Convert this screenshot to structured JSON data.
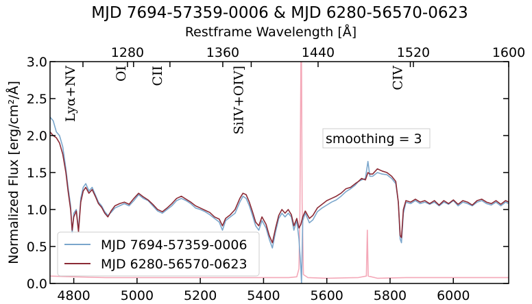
{
  "chart_data": {
    "type": "line",
    "title": "MJD 7694-57359-0006 & MJD 6280-56570-0623",
    "xlabel": "",
    "ylabel": "Normalized Flux [erg/cm²/Å]",
    "top_xlabel": "Restframe Wavelength [Å]",
    "xlim": [
      4725,
      6175
    ],
    "ylim": [
      0,
      3.0
    ],
    "top_xlim": [
      1215,
      1600
    ],
    "x_ticks": [
      4800,
      5000,
      5200,
      5400,
      5600,
      5800,
      6000
    ],
    "y_ticks": [
      0.0,
      0.5,
      1.0,
      1.5,
      2.0,
      2.5,
      3.0
    ],
    "top_ticks": [
      1280,
      1360,
      1440,
      1520,
      1600
    ],
    "annotation": "smoothing = 3",
    "line_labels": [
      {
        "label": "Lyα+NV",
        "x": 4790
      },
      {
        "label": "OI",
        "x": 4950
      },
      {
        "label": "CII",
        "x": 5065
      },
      {
        "label": "SiIV+OIV]",
        "x": 5322
      },
      {
        "label": "CIV",
        "x": 5825
      }
    ],
    "legend_position": "lower-left",
    "series": [
      {
        "name": "MJD 7694-57359-0006",
        "color": "#7aa6cc",
        "points": [
          [
            4725,
            2.25
          ],
          [
            4735,
            2.2
          ],
          [
            4745,
            2.05
          ],
          [
            4755,
            2.0
          ],
          [
            4765,
            1.85
          ],
          [
            4775,
            1.55
          ],
          [
            4782,
            1.3
          ],
          [
            4790,
            1.05
          ],
          [
            4795,
            0.68
          ],
          [
            4800,
            0.95
          ],
          [
            4808,
            1.0
          ],
          [
            4815,
            0.72
          ],
          [
            4822,
            1.15
          ],
          [
            4830,
            1.3
          ],
          [
            4838,
            1.35
          ],
          [
            4848,
            1.25
          ],
          [
            4858,
            1.3
          ],
          [
            4868,
            1.2
          ],
          [
            4878,
            1.1
          ],
          [
            4888,
            1.05
          ],
          [
            4898,
            0.97
          ],
          [
            4908,
            0.92
          ],
          [
            4918,
            0.96
          ],
          [
            4930,
            1.02
          ],
          [
            4945,
            1.05
          ],
          [
            4960,
            1.08
          ],
          [
            4975,
            1.05
          ],
          [
            4990,
            1.12
          ],
          [
            5005,
            1.2
          ],
          [
            5020,
            1.15
          ],
          [
            5035,
            1.12
          ],
          [
            5050,
            1.05
          ],
          [
            5065,
            0.98
          ],
          [
            5080,
            0.95
          ],
          [
            5095,
            1.0
          ],
          [
            5110,
            1.05
          ],
          [
            5125,
            1.12
          ],
          [
            5140,
            1.15
          ],
          [
            5155,
            1.12
          ],
          [
            5170,
            1.08
          ],
          [
            5185,
            1.02
          ],
          [
            5200,
            1.0
          ],
          [
            5215,
            0.97
          ],
          [
            5230,
            0.93
          ],
          [
            5245,
            0.88
          ],
          [
            5260,
            0.83
          ],
          [
            5270,
            0.72
          ],
          [
            5280,
            0.85
          ],
          [
            5295,
            0.9
          ],
          [
            5310,
            0.95
          ],
          [
            5325,
            1.1
          ],
          [
            5335,
            1.18
          ],
          [
            5345,
            1.15
          ],
          [
            5355,
            1.05
          ],
          [
            5365,
            0.92
          ],
          [
            5375,
            0.78
          ],
          [
            5385,
            0.72
          ],
          [
            5395,
            0.85
          ],
          [
            5408,
            0.75
          ],
          [
            5418,
            0.6
          ],
          [
            5428,
            0.48
          ],
          [
            5438,
            0.7
          ],
          [
            5448,
            0.88
          ],
          [
            5458,
            0.95
          ],
          [
            5468,
            0.9
          ],
          [
            5478,
            0.95
          ],
          [
            5488,
            0.9
          ],
          [
            5496,
            0.72
          ],
          [
            5505,
            0.85
          ],
          [
            5512,
            0.6
          ],
          [
            5518,
            0.2
          ],
          [
            5520,
            0.0
          ],
          [
            5524,
            0.85
          ],
          [
            5532,
            0.95
          ],
          [
            5545,
            0.82
          ],
          [
            5556,
            0.86
          ],
          [
            5570,
            0.97
          ],
          [
            5585,
            1.02
          ],
          [
            5600,
            1.06
          ],
          [
            5615,
            1.1
          ],
          [
            5630,
            1.13
          ],
          [
            5645,
            1.18
          ],
          [
            5660,
            1.24
          ],
          [
            5675,
            1.28
          ],
          [
            5690,
            1.33
          ],
          [
            5700,
            1.38
          ],
          [
            5710,
            1.4
          ],
          [
            5722,
            1.42
          ],
          [
            5730,
            1.65
          ],
          [
            5736,
            1.45
          ],
          [
            5745,
            1.45
          ],
          [
            5760,
            1.5
          ],
          [
            5775,
            1.48
          ],
          [
            5790,
            1.47
          ],
          [
            5805,
            1.42
          ],
          [
            5818,
            1.35
          ],
          [
            5826,
            1.1
          ],
          [
            5832,
            0.6
          ],
          [
            5836,
            0.55
          ],
          [
            5842,
            0.95
          ],
          [
            5850,
            1.1
          ],
          [
            5865,
            1.08
          ],
          [
            5880,
            1.12
          ],
          [
            5895,
            1.08
          ],
          [
            5910,
            1.1
          ],
          [
            5925,
            1.07
          ],
          [
            5940,
            1.1
          ],
          [
            5955,
            1.05
          ],
          [
            5970,
            1.1
          ],
          [
            5985,
            1.07
          ],
          [
            6000,
            1.12
          ],
          [
            6015,
            1.05
          ],
          [
            6030,
            1.1
          ],
          [
            6045,
            1.08
          ],
          [
            6060,
            1.05
          ],
          [
            6075,
            1.1
          ],
          [
            6090,
            1.12
          ],
          [
            6105,
            1.08
          ],
          [
            6120,
            1.06
          ],
          [
            6135,
            1.1
          ],
          [
            6150,
            1.05
          ],
          [
            6165,
            1.1
          ],
          [
            6175,
            1.08
          ]
        ]
      },
      {
        "name": "MJD 6280-56570-0623",
        "color": "#8b2a35",
        "points": [
          [
            4725,
            2.05
          ],
          [
            4735,
            2.0
          ],
          [
            4745,
            1.97
          ],
          [
            4755,
            1.9
          ],
          [
            4765,
            1.75
          ],
          [
            4775,
            1.5
          ],
          [
            4782,
            1.25
          ],
          [
            4790,
            1.0
          ],
          [
            4795,
            0.72
          ],
          [
            4800,
            0.9
          ],
          [
            4808,
            0.98
          ],
          [
            4815,
            0.7
          ],
          [
            4822,
            1.1
          ],
          [
            4830,
            1.25
          ],
          [
            4838,
            1.3
          ],
          [
            4848,
            1.22
          ],
          [
            4858,
            1.27
          ],
          [
            4868,
            1.18
          ],
          [
            4878,
            1.08
          ],
          [
            4888,
            1.03
          ],
          [
            4898,
            0.95
          ],
          [
            4908,
            0.9
          ],
          [
            4918,
            0.98
          ],
          [
            4930,
            1.05
          ],
          [
            4945,
            1.08
          ],
          [
            4960,
            1.1
          ],
          [
            4975,
            1.07
          ],
          [
            4990,
            1.15
          ],
          [
            5005,
            1.22
          ],
          [
            5020,
            1.17
          ],
          [
            5035,
            1.13
          ],
          [
            5050,
            1.07
          ],
          [
            5065,
            1.0
          ],
          [
            5080,
            0.97
          ],
          [
            5095,
            1.02
          ],
          [
            5110,
            1.08
          ],
          [
            5125,
            1.15
          ],
          [
            5140,
            1.18
          ],
          [
            5155,
            1.14
          ],
          [
            5170,
            1.1
          ],
          [
            5185,
            1.05
          ],
          [
            5200,
            1.02
          ],
          [
            5215,
            0.99
          ],
          [
            5230,
            0.96
          ],
          [
            5245,
            0.9
          ],
          [
            5260,
            0.87
          ],
          [
            5270,
            0.78
          ],
          [
            5280,
            0.88
          ],
          [
            5295,
            0.93
          ],
          [
            5310,
            1.0
          ],
          [
            5325,
            1.15
          ],
          [
            5335,
            1.22
          ],
          [
            5345,
            1.2
          ],
          [
            5355,
            1.1
          ],
          [
            5365,
            0.97
          ],
          [
            5375,
            0.83
          ],
          [
            5385,
            0.78
          ],
          [
            5395,
            0.9
          ],
          [
            5408,
            0.8
          ],
          [
            5418,
            0.65
          ],
          [
            5428,
            0.55
          ],
          [
            5438,
            0.75
          ],
          [
            5448,
            0.92
          ],
          [
            5458,
            1.0
          ],
          [
            5468,
            0.95
          ],
          [
            5478,
            1.0
          ],
          [
            5488,
            0.93
          ],
          [
            5496,
            0.78
          ],
          [
            5505,
            0.88
          ],
          [
            5512,
            0.75
          ],
          [
            5518,
            0.8
          ],
          [
            5524,
            0.9
          ],
          [
            5532,
            0.98
          ],
          [
            5545,
            0.88
          ],
          [
            5556,
            0.92
          ],
          [
            5570,
            1.02
          ],
          [
            5585,
            1.07
          ],
          [
            5600,
            1.12
          ],
          [
            5615,
            1.15
          ],
          [
            5630,
            1.18
          ],
          [
            5645,
            1.22
          ],
          [
            5660,
            1.28
          ],
          [
            5675,
            1.3
          ],
          [
            5690,
            1.35
          ],
          [
            5700,
            1.38
          ],
          [
            5710,
            1.42
          ],
          [
            5722,
            1.4
          ],
          [
            5730,
            1.5
          ],
          [
            5736,
            1.48
          ],
          [
            5745,
            1.48
          ],
          [
            5760,
            1.55
          ],
          [
            5775,
            1.52
          ],
          [
            5790,
            1.5
          ],
          [
            5805,
            1.45
          ],
          [
            5818,
            1.38
          ],
          [
            5826,
            1.1
          ],
          [
            5832,
            0.65
          ],
          [
            5836,
            0.62
          ],
          [
            5842,
            1.0
          ],
          [
            5850,
            1.12
          ],
          [
            5865,
            1.1
          ],
          [
            5880,
            1.14
          ],
          [
            5895,
            1.1
          ],
          [
            5910,
            1.12
          ],
          [
            5925,
            1.08
          ],
          [
            5940,
            1.12
          ],
          [
            5955,
            1.06
          ],
          [
            5970,
            1.12
          ],
          [
            5985,
            1.08
          ],
          [
            6000,
            1.13
          ],
          [
            6015,
            1.07
          ],
          [
            6030,
            1.12
          ],
          [
            6045,
            1.1
          ],
          [
            6060,
            1.06
          ],
          [
            6075,
            1.12
          ],
          [
            6090,
            1.14
          ],
          [
            6105,
            1.1
          ],
          [
            6120,
            1.08
          ],
          [
            6135,
            1.12
          ],
          [
            6150,
            1.07
          ],
          [
            6165,
            1.12
          ],
          [
            6175,
            1.1
          ]
        ]
      },
      {
        "name": "",
        "color": "#f4a8b8",
        "points": [
          [
            4725,
            0.1
          ],
          [
            4800,
            0.09
          ],
          [
            4900,
            0.08
          ],
          [
            5000,
            0.08
          ],
          [
            5100,
            0.08
          ],
          [
            5200,
            0.08
          ],
          [
            5300,
            0.08
          ],
          [
            5400,
            0.08
          ],
          [
            5480,
            0.08
          ],
          [
            5505,
            0.09
          ],
          [
            5512,
            0.2
          ],
          [
            5515,
            1.0
          ],
          [
            5518,
            3.0
          ],
          [
            5520,
            3.0
          ],
          [
            5522,
            1.1
          ],
          [
            5526,
            0.12
          ],
          [
            5540,
            0.08
          ],
          [
            5600,
            0.07
          ],
          [
            5700,
            0.08
          ],
          [
            5725,
            0.1
          ],
          [
            5728,
            0.72
          ],
          [
            5731,
            0.1
          ],
          [
            5760,
            0.07
          ],
          [
            5850,
            0.08
          ],
          [
            5950,
            0.08
          ],
          [
            6050,
            0.08
          ],
          [
            6175,
            0.08
          ]
        ]
      }
    ]
  }
}
